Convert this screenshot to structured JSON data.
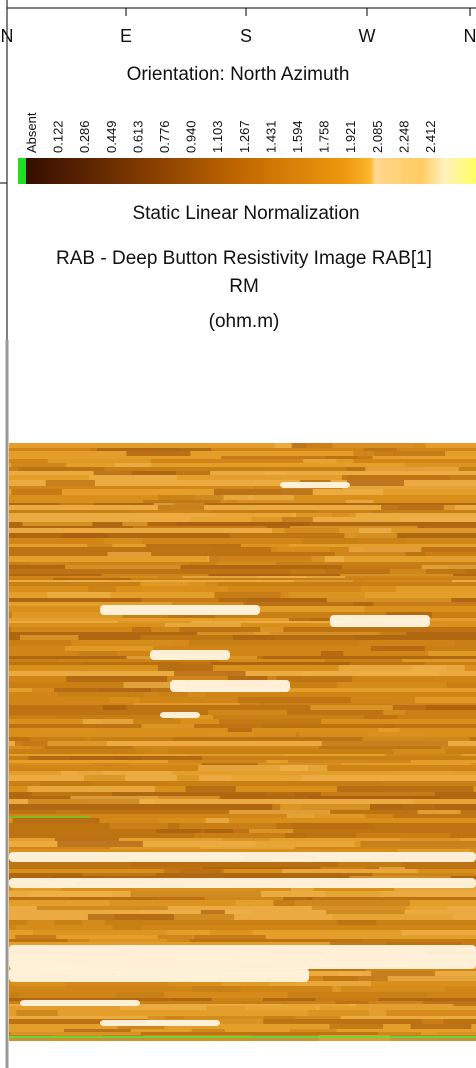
{
  "header": {
    "compass": [
      "N",
      "E",
      "S",
      "W",
      "N"
    ],
    "orientation": "Orientation: North Azimuth",
    "scale_labels": [
      "Absent",
      "0.122",
      "0.286",
      "0.449",
      "0.613",
      "0.776",
      "0.940",
      "1.103",
      "1.267",
      "1.431",
      "1.594",
      "1.758",
      "1.921",
      "2.085",
      "2.248",
      "2.412"
    ],
    "normalization": "Static Linear Normalization",
    "title": "RAB - Deep Button Resistivity Image RAB[1]",
    "mnemonic": "RM",
    "unit": "(ohm.m)"
  }
}
